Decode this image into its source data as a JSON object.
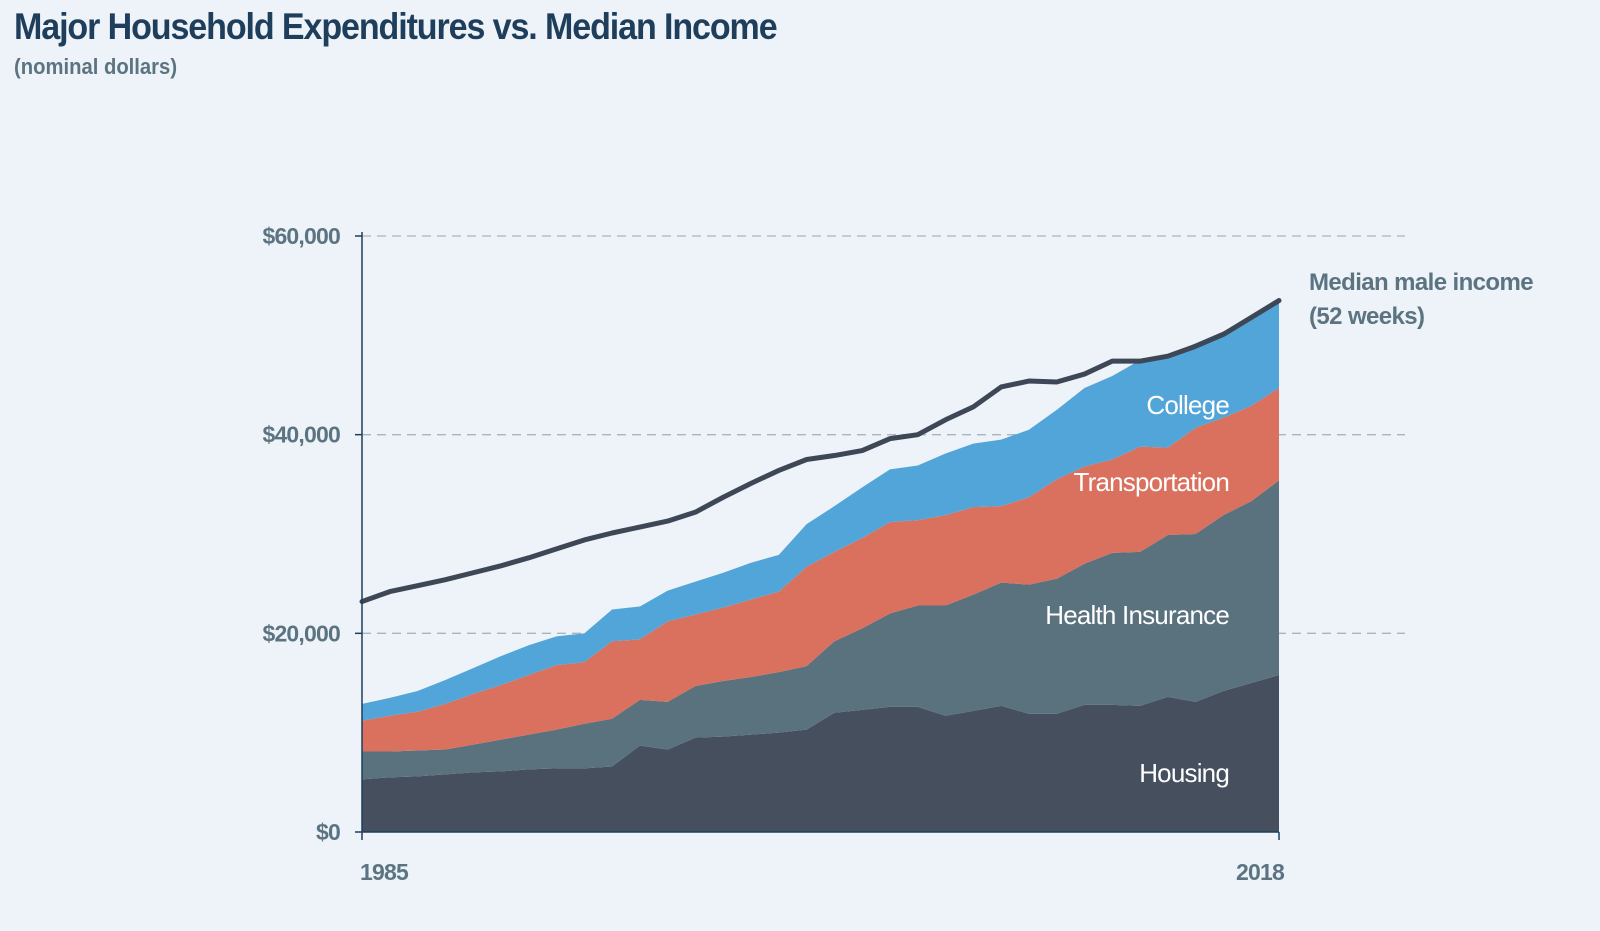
{
  "chart_data": {
    "type": "area",
    "stacked": true,
    "title": "Major Household Expenditures vs. Median Income",
    "subtitle": "(nominal dollars)",
    "xlabel": "",
    "ylabel": "",
    "xlim": [
      1985,
      2018
    ],
    "ylim": [
      0,
      60000
    ],
    "x_tick_labels": [
      "1985",
      "2018"
    ],
    "y_ticks": [
      0,
      20000,
      40000,
      60000
    ],
    "y_tick_labels": [
      "$0",
      "$20,000",
      "$40,000",
      "$60,000"
    ],
    "grid": "horizontal dashed",
    "x": [
      1985,
      1986,
      1987,
      1988,
      1989,
      1990,
      1991,
      1992,
      1993,
      1994,
      1995,
      1996,
      1997,
      1998,
      1999,
      2000,
      2001,
      2002,
      2003,
      2004,
      2005,
      2006,
      2007,
      2008,
      2009,
      2010,
      2011,
      2012,
      2013,
      2014,
      2015,
      2016,
      2017,
      2018
    ],
    "series": [
      {
        "name": "Housing",
        "color": "#464f5e",
        "values": [
          5300,
          5500,
          5600,
          5800,
          6000,
          6100,
          6300,
          6400,
          6400,
          6600,
          8700,
          8300,
          9500,
          9600,
          9800,
          10000,
          10300,
          12000,
          12300,
          12600,
          12600,
          11700,
          12200,
          12700,
          11900,
          11900,
          12800,
          12800,
          12700,
          13600,
          13100,
          14200,
          15000,
          15800
        ]
      },
      {
        "name": "Health Insurance",
        "color": "#5a717e",
        "values": [
          2800,
          2600,
          2600,
          2500,
          2800,
          3200,
          3500,
          3900,
          4500,
          4800,
          4600,
          4800,
          5200,
          5600,
          5800,
          6100,
          6400,
          7200,
          8200,
          9400,
          10200,
          11100,
          11700,
          12400,
          13000,
          13600,
          14200,
          15300,
          15500,
          16300,
          16900,
          17700,
          18300,
          19600
        ]
      },
      {
        "name": "Transportation",
        "color": "#d9715e",
        "values": [
          3100,
          3600,
          3900,
          4600,
          5100,
          5500,
          6000,
          6500,
          6200,
          7800,
          6100,
          8100,
          7200,
          7400,
          7800,
          8100,
          10000,
          9000,
          9100,
          9200,
          8600,
          9100,
          8800,
          7700,
          8800,
          10000,
          9800,
          9400,
          10600,
          8800,
          10700,
          9800,
          9600,
          9300
        ]
      },
      {
        "name": "College",
        "color": "#52a5d8",
        "values": [
          1700,
          1800,
          2100,
          2400,
          2600,
          2900,
          3000,
          2900,
          2900,
          3200,
          3300,
          3100,
          3300,
          3500,
          3700,
          3700,
          4300,
          4600,
          5100,
          5300,
          5500,
          6200,
          6400,
          6700,
          6800,
          7000,
          7900,
          8400,
          8700,
          9200,
          8500,
          8700,
          8800,
          8700
        ]
      }
    ],
    "line": {
      "name_line1": "Median male income",
      "name_line2": "(52 weeks)",
      "color": "#3e4756",
      "values": [
        23200,
        24200,
        24800,
        25400,
        26100,
        26800,
        27600,
        28500,
        29400,
        30100,
        30700,
        31300,
        32200,
        33700,
        35100,
        36400,
        37500,
        37900,
        38400,
        39600,
        40000,
        41500,
        42800,
        44800,
        45400,
        45300,
        46100,
        47400,
        47400,
        47900,
        48900,
        50100,
        51800,
        53500
      ]
    }
  }
}
